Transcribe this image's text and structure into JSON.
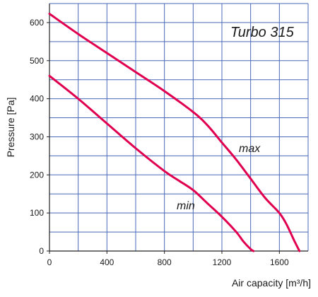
{
  "chart_data": {
    "type": "line",
    "title": "Turbo 315",
    "xlabel": "Air capacity [m³/h]",
    "ylabel": "Pressure [Pa]",
    "xlim": [
      0,
      1800
    ],
    "ylim": [
      0,
      650
    ],
    "x_ticks": [
      0,
      400,
      800,
      1200,
      1600
    ],
    "y_ticks": [
      0,
      100,
      200,
      300,
      400,
      500,
      600
    ],
    "grid": true,
    "colors": {
      "curve": "#e0004f",
      "grid": "#4a68b8",
      "axis": "#222222"
    },
    "series": [
      {
        "name": "max",
        "x": [
          0,
          200,
          400,
          600,
          800,
          1000,
          1100,
          1200,
          1300,
          1400,
          1500,
          1600,
          1650,
          1700,
          1740
        ],
        "y": [
          623,
          570,
          520,
          470,
          420,
          365,
          330,
          285,
          240,
          190,
          140,
          100,
          70,
          30,
          0
        ]
      },
      {
        "name": "min",
        "x": [
          0,
          200,
          400,
          600,
          800,
          900,
          1000,
          1100,
          1200,
          1300,
          1350,
          1400,
          1420
        ],
        "y": [
          460,
          400,
          335,
          270,
          210,
          185,
          160,
          125,
          90,
          50,
          25,
          5,
          0
        ]
      }
    ]
  }
}
